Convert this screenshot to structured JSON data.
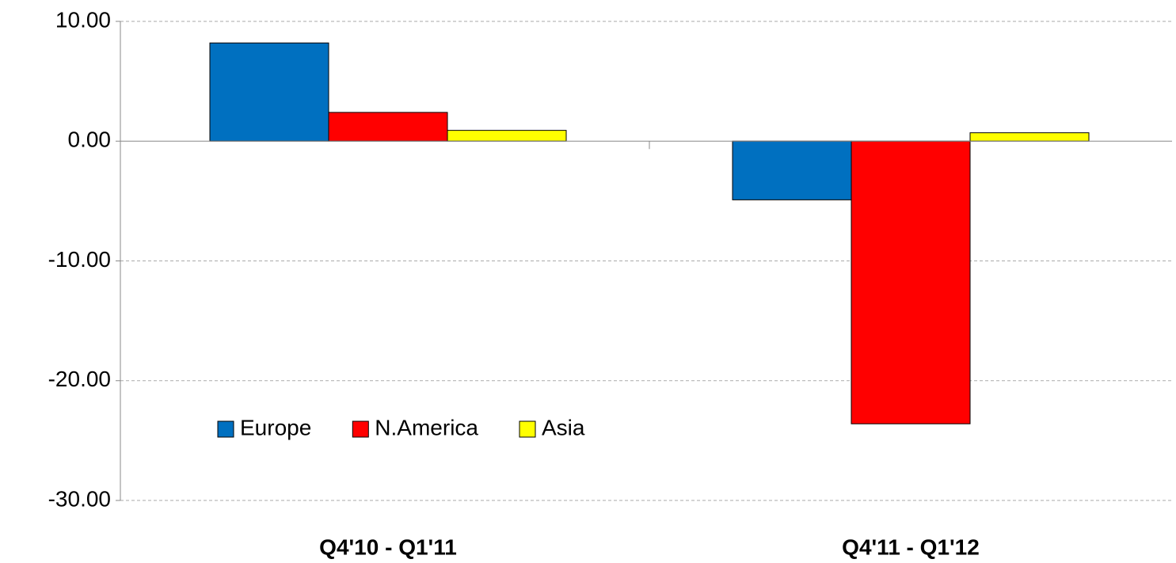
{
  "chart_data": {
    "type": "bar",
    "categories": [
      "Q4'10 - Q1'11",
      "Q4'11 - Q1'12"
    ],
    "series": [
      {
        "name": "Europe",
        "color": "#0070c0",
        "values": [
          8.2,
          -4.9
        ]
      },
      {
        "name": "N.America",
        "color": "#ff0000",
        "values": [
          2.4,
          -23.6
        ]
      },
      {
        "name": "Asia",
        "color": "#ffff00",
        "values": [
          0.9,
          0.7
        ]
      }
    ],
    "ylim": [
      -30,
      10
    ],
    "yticks": [
      {
        "value": -30,
        "label": "-30.00"
      },
      {
        "value": -20,
        "label": "-20.00"
      },
      {
        "value": -10,
        "label": "-10.00"
      },
      {
        "value": 0,
        "label": "0.00"
      },
      {
        "value": 10,
        "label": "10.00"
      }
    ],
    "grid": true,
    "legend": "lower left"
  }
}
